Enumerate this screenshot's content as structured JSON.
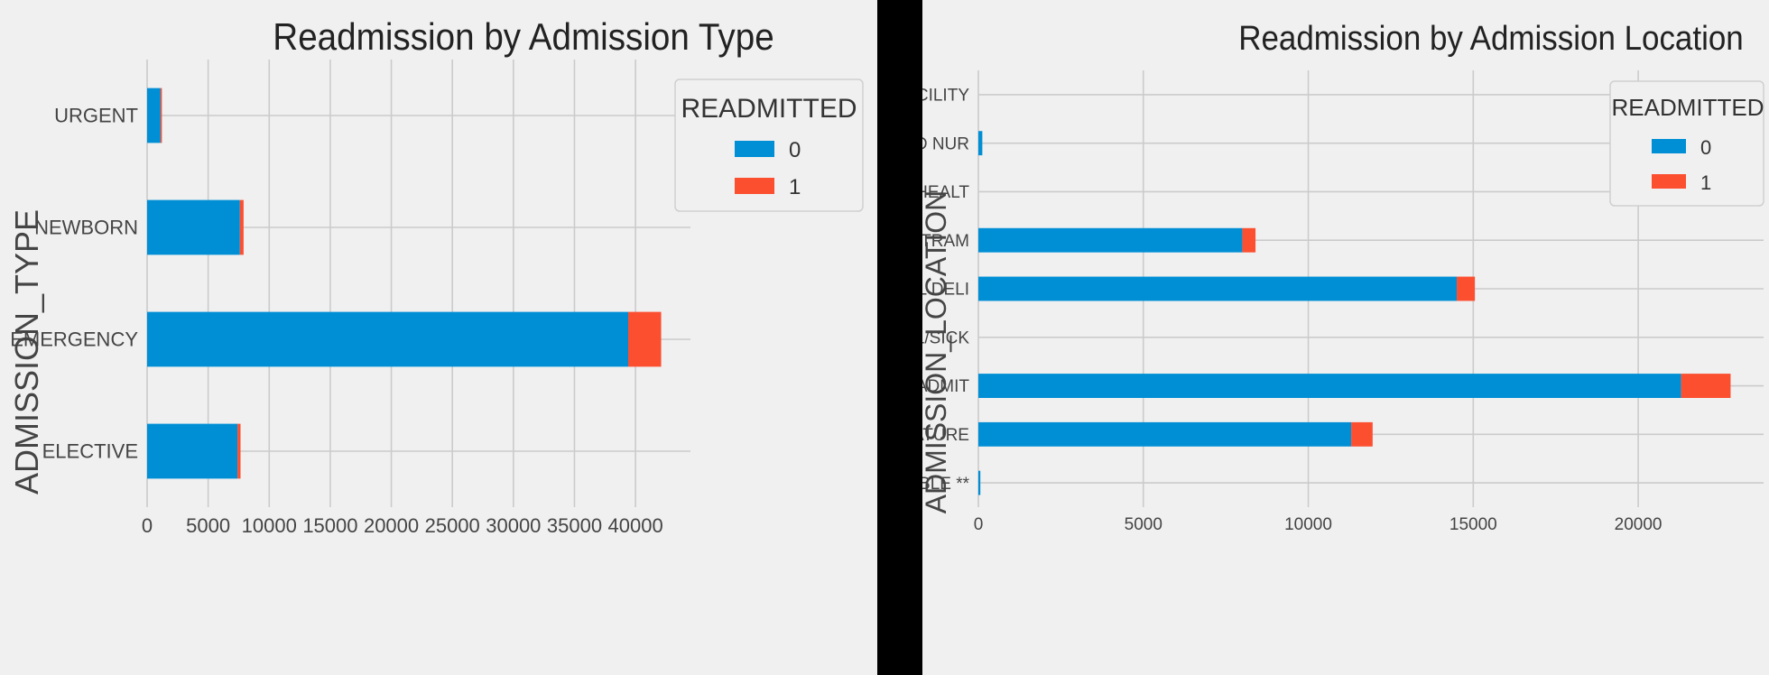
{
  "colors": {
    "background": "#f0f0f0",
    "grid": "#cbcbcb",
    "text": "#444444",
    "series_0": "#008fd5",
    "series_1": "#fc4f30",
    "divider": "#000000"
  },
  "chart_data": [
    {
      "type": "bar",
      "orientation": "horizontal",
      "stacked": true,
      "title": "Readmission by Admission Type",
      "xlabel": "",
      "ylabel": "ADMISSION_TYPE",
      "categories": [
        "ELECTIVE",
        "EMERGENCY",
        "NEWBORN",
        "URGENT"
      ],
      "series": [
        {
          "name": "0",
          "values": [
            7400,
            39400,
            7600,
            1100
          ]
        },
        {
          "name": "1",
          "values": [
            250,
            2700,
            300,
            30
          ]
        }
      ],
      "xlim": [
        0,
        44500
      ],
      "xticks": [
        0,
        5000,
        10000,
        15000,
        20000,
        25000,
        30000,
        35000,
        40000
      ],
      "legend": {
        "title": "READMITTED",
        "placement": "top-right",
        "entries": [
          "0",
          "1"
        ]
      },
      "grid": true
    },
    {
      "type": "bar",
      "orientation": "horizontal",
      "stacked": true,
      "title": "Readmission by Admission Location",
      "xlabel": "",
      "ylabel": "ADMISSION_LOCATION",
      "categories": [
        "** INFO NOT AVAILABLE **",
        "CLINIC REFERRAL/PREMATURE",
        "EMERGENCY ROOM ADMIT",
        "HMO REFERRAL/SICK",
        "PHYS REFERRAL/NORMAL DELI",
        "TRANSFER FROM HOSP/EXTRAM",
        "TRANSFER FROM OTHER HEALT",
        "TRANSFER FROM SKILLED NUR",
        "TRSF WITHIN THIS FACILITY"
      ],
      "series": [
        {
          "name": "0",
          "values": [
            60,
            11300,
            21300,
            0,
            14500,
            8000,
            0,
            120,
            0
          ]
        },
        {
          "name": "1",
          "values": [
            0,
            650,
            1500,
            0,
            550,
            400,
            0,
            0,
            0
          ]
        }
      ],
      "xlim": [
        0,
        23800
      ],
      "xticks": [
        0,
        5000,
        10000,
        15000,
        20000
      ],
      "legend": {
        "title": "READMITTED",
        "placement": "top-right",
        "entries": [
          "0",
          "1"
        ]
      },
      "grid": true
    }
  ]
}
